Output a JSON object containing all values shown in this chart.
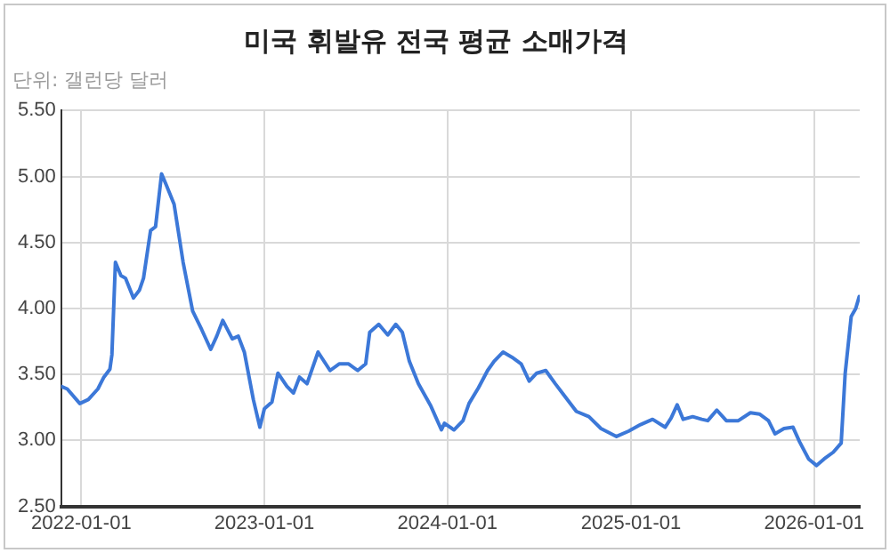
{
  "chart_data": {
    "type": "line",
    "title": "미국 휘발유 전국 평균 소매가격",
    "subtitle": "단위: 갤런당 달러",
    "xlim": [
      "2021-11-22",
      "2026-04-02"
    ],
    "xticks": [
      "2022-01-01",
      "2023-01-01",
      "2024-01-01",
      "2025-01-01",
      "2026-01-01"
    ],
    "ylim": [
      2.5,
      5.5
    ],
    "yticks": [
      {
        "value": 2.5,
        "label": "2.50"
      },
      {
        "value": 3,
        "label": "3.00"
      },
      {
        "value": 3.5,
        "label": "3.50"
      },
      {
        "value": 4,
        "label": "4.00"
      },
      {
        "value": 4.5,
        "label": "4.50"
      },
      {
        "value": 5,
        "label": "5.00"
      },
      {
        "value": 5.5,
        "label": "5.50"
      }
    ],
    "grid": true,
    "legend": false,
    "marker": "none",
    "line_style": "solid",
    "series": [
      {
        "color": "#3c78d8",
        "x": [
          "2021-11-22",
          "2021-12-04",
          "2021-12-29",
          "2022-01-15",
          "2022-02-03",
          "2022-02-15",
          "2022-02-27",
          "2022-03-03",
          "2022-03-10",
          "2022-03-21",
          "2022-03-30",
          "2022-04-15",
          "2022-04-27",
          "2022-05-05",
          "2022-05-19",
          "2022-05-29",
          "2022-06-10",
          "2022-06-19",
          "2022-07-05",
          "2022-07-23",
          "2022-08-11",
          "2022-08-29",
          "2022-09-16",
          "2022-09-28",
          "2022-10-10",
          "2022-10-29",
          "2022-11-10",
          "2022-11-22",
          "2022-12-10",
          "2022-12-23",
          "2023-01-01",
          "2023-01-16",
          "2023-01-28",
          "2023-02-15",
          "2023-02-28",
          "2023-03-12",
          "2023-03-27",
          "2023-04-18",
          "2023-05-12",
          "2023-05-30",
          "2023-06-18",
          "2023-07-06",
          "2023-07-22",
          "2023-07-30",
          "2023-08-17",
          "2023-09-04",
          "2023-09-20",
          "2023-10-03",
          "2023-10-17",
          "2023-11-04",
          "2023-11-29",
          "2023-12-20",
          "2023-12-26",
          "2024-01-14",
          "2024-02-01",
          "2024-02-13",
          "2024-03-03",
          "2024-03-21",
          "2024-04-03",
          "2024-04-21",
          "2024-05-09",
          "2024-05-27",
          "2024-06-12",
          "2024-06-27",
          "2024-07-15",
          "2024-08-03",
          "2024-08-21",
          "2024-09-14",
          "2024-10-09",
          "2024-11-02",
          "2024-12-03",
          "2024-12-27",
          "2025-01-20",
          "2025-02-13",
          "2025-03-10",
          "2025-03-22",
          "2025-04-03",
          "2025-04-15",
          "2025-05-04",
          "2025-05-22",
          "2025-06-03",
          "2025-06-21",
          "2025-07-10",
          "2025-08-03",
          "2025-08-27",
          "2025-09-14",
          "2025-10-02",
          "2025-10-15",
          "2025-11-02",
          "2025-11-20",
          "2025-12-03",
          "2025-12-21",
          "2026-01-06",
          "2026-01-21",
          "2026-02-08",
          "2026-02-24",
          "2026-03-04",
          "2026-03-16",
          "2026-03-25",
          "2026-04-01"
        ],
        "values": [
          3.41,
          3.39,
          3.28,
          3.31,
          3.39,
          3.48,
          3.54,
          3.65,
          4.35,
          4.25,
          4.23,
          4.08,
          4.14,
          4.23,
          4.59,
          4.62,
          5.02,
          4.94,
          4.79,
          4.35,
          3.98,
          3.84,
          3.69,
          3.79,
          3.91,
          3.77,
          3.79,
          3.67,
          3.31,
          3.1,
          3.24,
          3.29,
          3.51,
          3.41,
          3.36,
          3.48,
          3.43,
          3.67,
          3.53,
          3.58,
          3.58,
          3.53,
          3.58,
          3.82,
          3.88,
          3.8,
          3.88,
          3.82,
          3.6,
          3.43,
          3.26,
          3.08,
          3.13,
          3.08,
          3.15,
          3.28,
          3.4,
          3.53,
          3.6,
          3.67,
          3.63,
          3.58,
          3.45,
          3.51,
          3.53,
          3.43,
          3.34,
          3.22,
          3.18,
          3.09,
          3.03,
          3.07,
          3.12,
          3.16,
          3.1,
          3.17,
          3.27,
          3.16,
          3.18,
          3.16,
          3.15,
          3.23,
          3.15,
          3.15,
          3.21,
          3.2,
          3.15,
          3.05,
          3.09,
          3.1,
          2.99,
          2.86,
          2.81,
          2.86,
          2.91,
          2.98,
          3.51,
          3.94,
          4,
          4.09
        ]
      }
    ]
  }
}
